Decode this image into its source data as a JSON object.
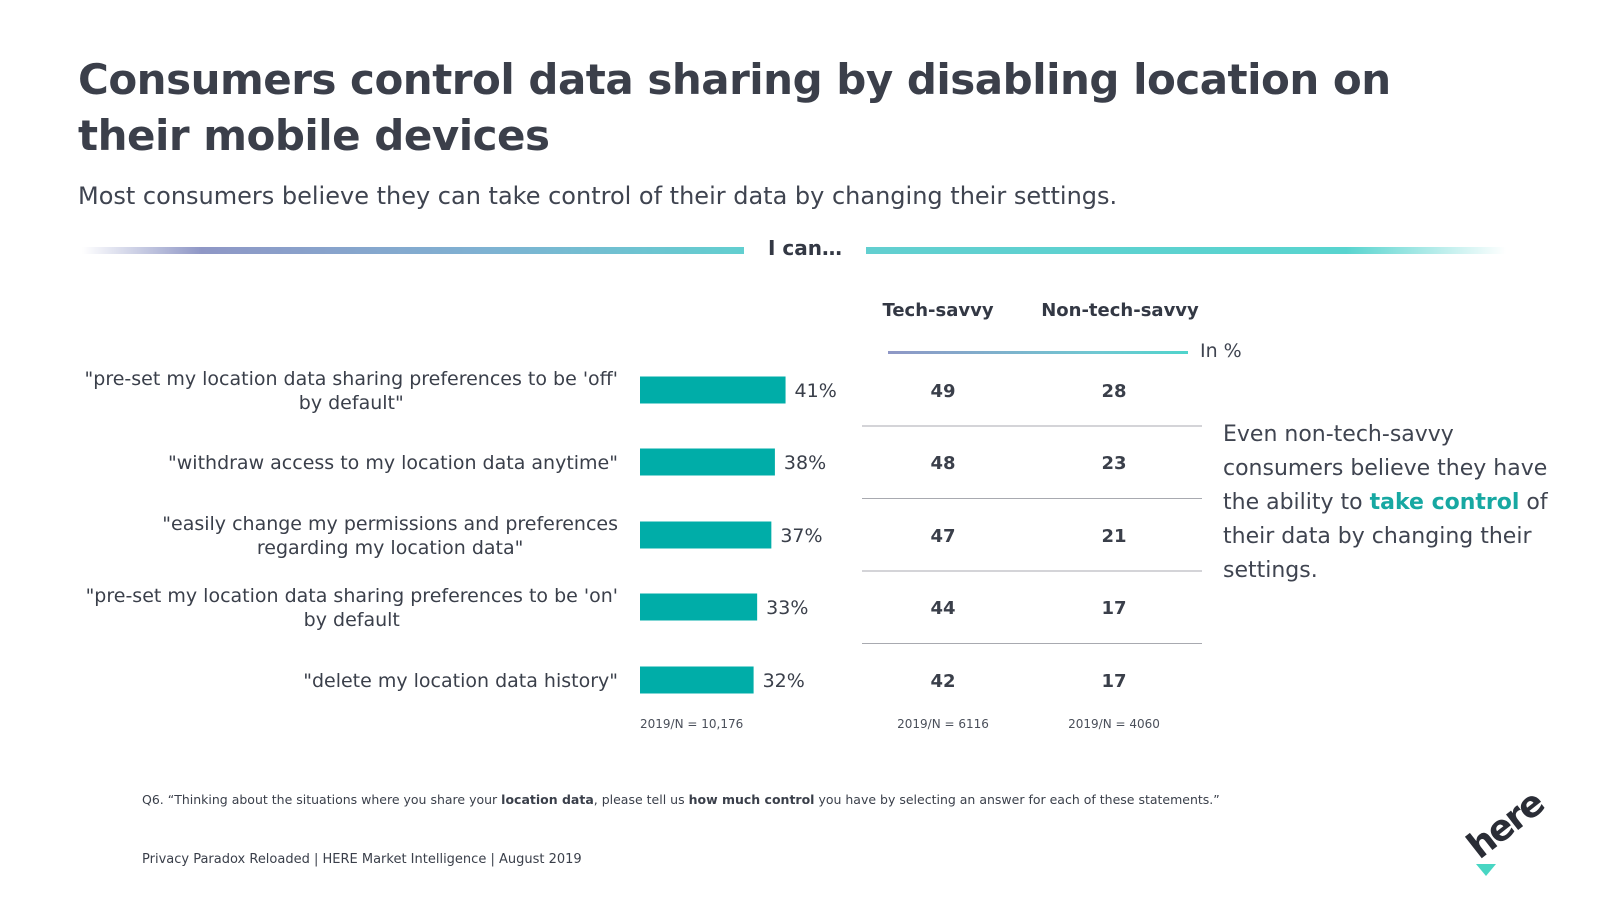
{
  "title": "Consumers control data sharing by disabling location on their mobile devices",
  "subtitle": "Most consumers believe they can take control of their data by changing their settings.",
  "section_label": "I can…",
  "columns": {
    "tech_savvy": "Tech-savvy",
    "non_tech_savvy": "Non-tech-savvy"
  },
  "unit_label": "In %",
  "callout": {
    "pre": "Even non-tech-savvy consumers believe they have the ability to ",
    "highlight": "take control",
    "post": " of their data by changing their settings."
  },
  "question": {
    "p1": "Q6. “Thinking about the situations where you share your ",
    "b1": "location data",
    "p2": ", please tell us ",
    "b2": "how much control",
    "p3": " you have by selecting an answer for each of these statements.”"
  },
  "footer": "Privacy Paradox Reloaded | HERE Market Intelligence | August 2019",
  "logo_text": "here",
  "colors": {
    "bar": "#00ada8",
    "accent_text": "#17a8a2",
    "divider_line": "#a8aab0"
  },
  "chart_data": {
    "type": "bar",
    "orientation": "horizontal",
    "title": "I can…",
    "unit": "%",
    "categories": [
      [
        "\"pre-set my location data sharing preferences to be 'off'",
        "by default\""
      ],
      [
        "\"withdraw access to my location data anytime\""
      ],
      [
        "\"easily change my permissions and preferences",
        "regarding my location data\""
      ],
      [
        "\"pre-set my location data sharing preferences to be 'on'",
        "by default"
      ],
      [
        "\"delete my location data history\""
      ]
    ],
    "values": [
      41,
      38,
      37,
      33,
      32
    ],
    "value_labels": [
      "41%",
      "38%",
      "37%",
      "33%",
      "32%"
    ],
    "xlim": [
      0,
      100
    ],
    "n_label": "2019/N = 10,176",
    "table": {
      "columns": [
        "Tech-savvy",
        "Non-tech-savvy"
      ],
      "tech_savvy": [
        49,
        48,
        47,
        44,
        42
      ],
      "non_tech_savvy": [
        28,
        23,
        21,
        17,
        17
      ],
      "n_labels": [
        "2019/N = 6116",
        "2019/N = 4060"
      ]
    }
  }
}
